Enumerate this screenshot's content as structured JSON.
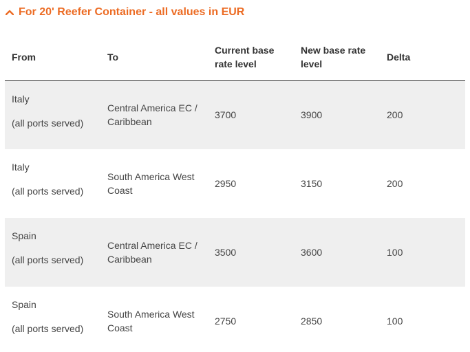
{
  "accordion": {
    "title": "For 20' Reefer Container - all values in EUR",
    "icon": "chevron-up-icon",
    "accent_color": "#ec6b23"
  },
  "table": {
    "headers": {
      "from": "From",
      "to": "To",
      "current": "Current base rate level",
      "new": "New base rate level",
      "delta": "Delta"
    },
    "rows": [
      {
        "from": "Italy",
        "ports": "(all ports served)",
        "to": "Central America EC / Caribbean",
        "current": "3700",
        "new": "3900",
        "delta": "200"
      },
      {
        "from": "Italy",
        "ports": "(all ports served)",
        "to": "South America West Coast",
        "current": "2950",
        "new": "3150",
        "delta": "200"
      },
      {
        "from": "Spain",
        "ports": "(all ports served)",
        "to": "Central America EC / Caribbean",
        "current": "3500",
        "new": "3600",
        "delta": "100"
      },
      {
        "from": "Spain",
        "ports": "(all ports served)",
        "to": "South America West Coast",
        "current": "2750",
        "new": "2850",
        "delta": "100"
      }
    ]
  }
}
